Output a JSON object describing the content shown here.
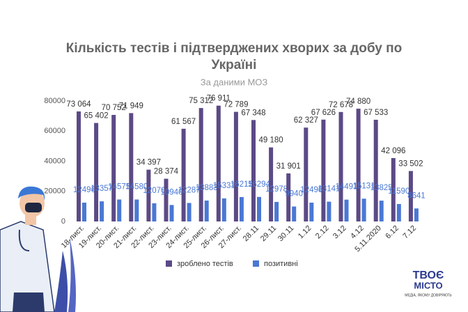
{
  "chart_data": {
    "type": "bar",
    "title": "Кількість тестів і підтверджених хворих за добу по Україні",
    "subtitle": "За даними МОЗ",
    "categories": [
      "18-лист.",
      "19-лист.",
      "20-лист.",
      "21-лист.",
      "22-лист.",
      "23-лист.",
      "24-лист.",
      "25-лист.",
      "26-лист.",
      "27-лист.",
      "28.11",
      "29.11",
      "30.11",
      "1.12",
      "2.12",
      "3.12",
      "4.12",
      "5.11.2020",
      "6.12",
      "7.12"
    ],
    "series": [
      {
        "name": "зроблено тестів",
        "color": "#5b4a86",
        "values": [
          73064,
          65402,
          70752,
          71949,
          34397,
          28374,
          61567,
          75312,
          76911,
          72789,
          67348,
          49180,
          31901,
          62327,
          67626,
          72678,
          74880,
          67533,
          42096,
          33502
        ],
        "value_labels": [
          "73 064",
          "65 402",
          "70 752",
          "71 949",
          "34 397",
          "28 374",
          "61 567",
          "75 312",
          "76 911",
          "72 789",
          "67 348",
          "49 180",
          "31 901",
          "62 327",
          "67 626",
          "72 678",
          "74 880",
          "67 533",
          "42 096",
          "33 502"
        ]
      },
      {
        "name": "позитивні",
        "color": "#4a78d4",
        "values": [
          12496,
          13357,
          14575,
          14580,
          12070,
          10940,
          12287,
          13883,
          15331,
          16215,
          16294,
          12978,
          9940,
          12496,
          13141,
          14491,
          15131,
          13825,
          11590,
          8641
        ]
      }
    ],
    "ylim": [
      0,
      80000
    ],
    "yticks": [
      0,
      20000,
      40000,
      60000,
      80000
    ],
    "grid": false
  },
  "logo": {
    "name": "ТВОЄ",
    "name2": "МІСТО",
    "tagline": "МЕДІА, ЯКОМУ ДОВІРЯЮТЬ"
  }
}
